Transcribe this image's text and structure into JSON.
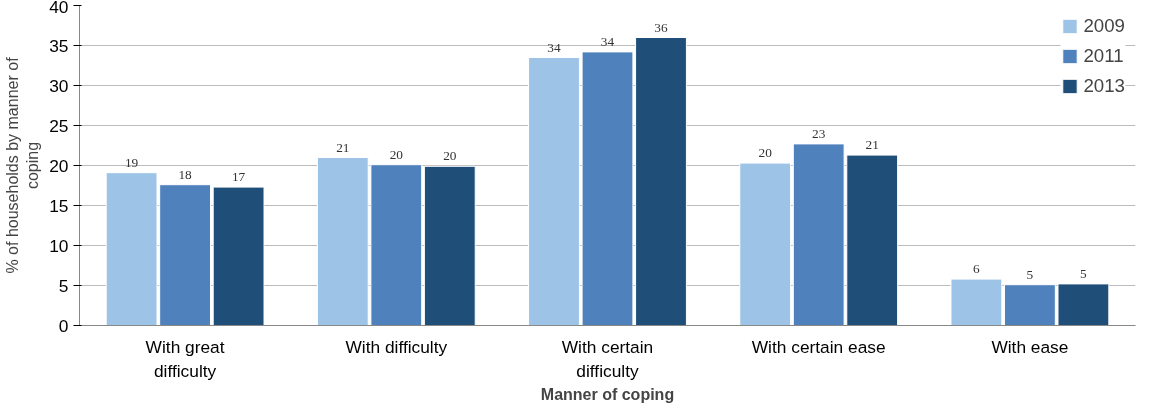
{
  "chart_data": {
    "type": "bar",
    "xlabel": "Manner of coping",
    "ylabel": "% of households by manner of coping",
    "categories": [
      "With great difficulty",
      "With difficulty",
      "With certain difficulty",
      "With certain ease",
      "With ease"
    ],
    "series": [
      {
        "name": "2009",
        "color": "#9dc3e6",
        "values": [
          19.1,
          21.0,
          33.5,
          20.3,
          5.8
        ],
        "value_labels": [
          "19",
          "21",
          "34",
          "20",
          "6"
        ]
      },
      {
        "name": "2011",
        "color": "#4f81bd",
        "values": [
          17.6,
          20.1,
          34.2,
          22.7,
          5.1
        ],
        "value_labels": [
          "18",
          "20",
          "34",
          "23",
          "5"
        ]
      },
      {
        "name": "2013",
        "color": "#1f4e79",
        "values": [
          17.3,
          19.9,
          36.0,
          21.3,
          5.2
        ],
        "value_labels": [
          "17",
          "20",
          "36",
          "21",
          "5"
        ]
      }
    ],
    "ylim": [
      0,
      40
    ],
    "yticks": [
      0,
      5,
      10,
      15,
      20,
      25,
      30,
      35,
      40
    ],
    "grid": "y",
    "legend": "top right"
  }
}
